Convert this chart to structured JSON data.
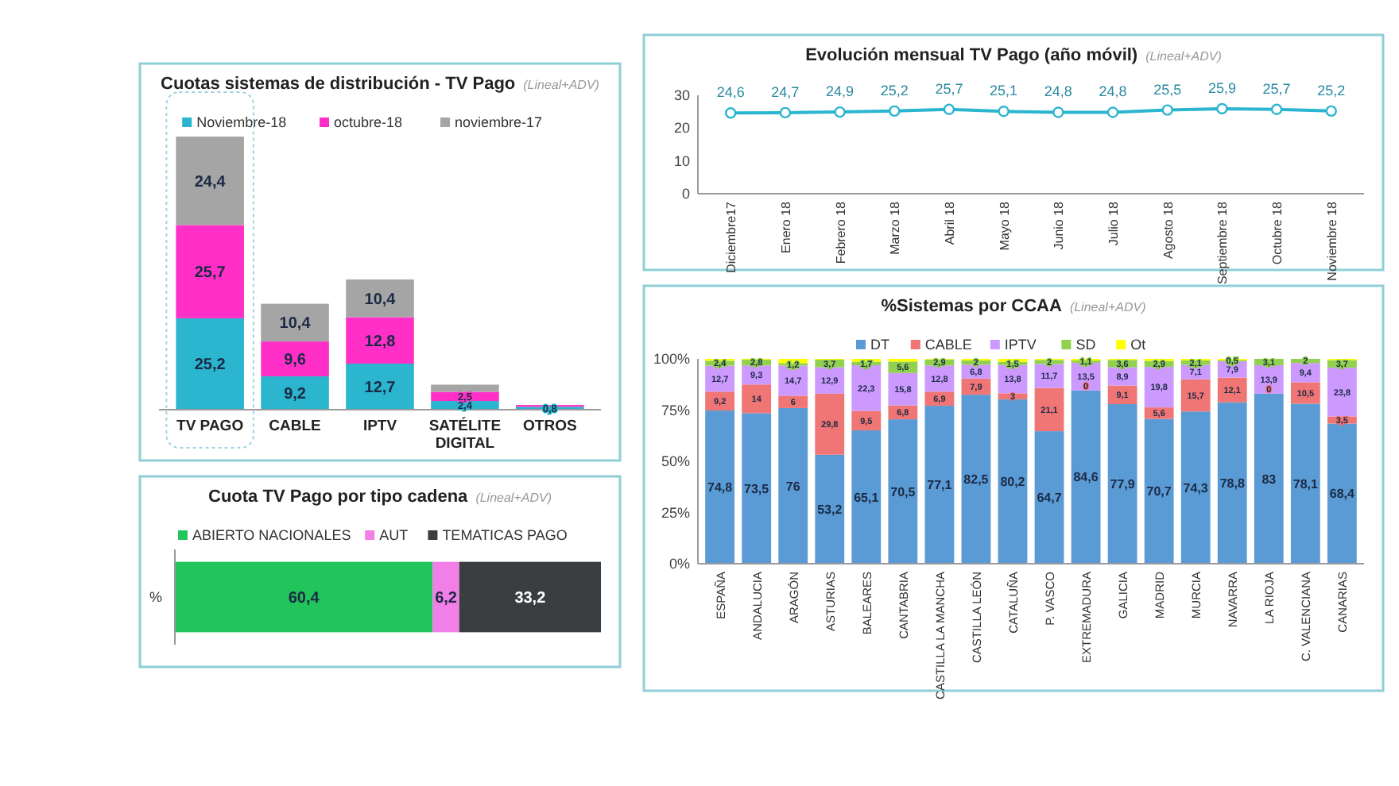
{
  "chart_data": [
    {
      "type": "bar",
      "title": "Cuotas sistemas de distribución - TV Pago",
      "subtitle": "(Lineal+ADV)",
      "stacked": true,
      "legend": "top",
      "categories": [
        "TV PAGO",
        "CABLE",
        "IPTV",
        "SATÉLITE DIGITAL",
        "OTROS"
      ],
      "series": [
        {
          "name": "Noviembre-18",
          "color": "#2bb5cf",
          "values": [
            25.2,
            9.2,
            12.7,
            2.4,
            0.8
          ],
          "value_labels": [
            "25,2",
            "9,2",
            "12,7",
            "2,4",
            "0,8"
          ]
        },
        {
          "name": "octubre-18",
          "color": "#ff2fc8",
          "values": [
            25.7,
            9.6,
            12.8,
            2.5,
            0.5
          ],
          "value_labels": [
            "25,7",
            "9,6",
            "12,8",
            "2,5",
            null
          ]
        },
        {
          "name": "noviembre-17",
          "color": "#a5a5a5",
          "values": [
            24.4,
            10.4,
            10.4,
            2,
            null
          ],
          "value_labels": [
            "24,4",
            "10,4",
            "10,4",
            null,
            null
          ]
        }
      ]
    },
    {
      "type": "line",
      "title": "Evolución mensual TV Pago (año móvil)",
      "subtitle": "(Lineal+ADV)",
      "marker": "circle",
      "categories": [
        "Diciembre17",
        "Enero 18",
        "Febrero 18",
        "Marzo 18",
        "Abril 18",
        "Mayo 18",
        "Junio 18",
        "Julio 18",
        "Agosto 18",
        "Septiembre 18",
        "Octubre 18",
        "Noviembre 18"
      ],
      "ylim": [
        0,
        30
      ],
      "yticks": [
        0,
        10,
        20,
        30
      ],
      "series": [
        {
          "color": "#2bb5cf",
          "values": [
            24.6,
            24.7,
            24.9,
            25.2,
            25.7,
            25.1,
            24.8,
            24.8,
            25.5,
            25.9,
            25.7,
            25.2
          ],
          "value_labels": [
            "24,6",
            "24,7",
            "24,9",
            "25,2",
            "25,7",
            "25,1",
            "24,8",
            "24,8",
            "25,5",
            "25,9",
            "25,7",
            "25,2"
          ]
        }
      ]
    },
    {
      "type": "bar",
      "title": "Cuota TV Pago por tipo cadena",
      "subtitle": "(Lineal+ADV)",
      "stacked": true,
      "orientation": "horizontal",
      "legend": "top",
      "categories": [
        "%"
      ],
      "series": [
        {
          "name": "ABIERTO NACIONALES",
          "color": "#22c45c",
          "values": [
            60.4
          ],
          "value_labels": [
            "60,4"
          ]
        },
        {
          "name": "AUT",
          "color": "#f27fe8",
          "values": [
            6.2
          ],
          "value_labels": [
            "6,2"
          ]
        },
        {
          "name": "TEMATICAS PAGO",
          "color": "#3a3e41",
          "values": [
            33.2
          ],
          "value_labels": [
            "33,2"
          ]
        }
      ]
    },
    {
      "type": "bar",
      "title": "%Sistemas por CCAA",
      "subtitle": "(Lineal+ADV)",
      "stacked": true,
      "legend": "top",
      "ylim": [
        0,
        100
      ],
      "yticks": [
        {
          "value": 0,
          "label": "0%"
        },
        {
          "value": 25,
          "label": "25%"
        },
        {
          "value": 50,
          "label": "50%"
        },
        {
          "value": 75,
          "label": "75%"
        },
        {
          "value": 100,
          "label": "100%"
        }
      ],
      "categories": [
        "ESPAÑA",
        "ANDALUCIA",
        "ARAGÓN",
        "ASTURIAS",
        "BALEARES",
        "CANTABRIA",
        "CASTILLA LA MANCHA",
        "CASTILLA LEÓN",
        "CATALUÑA",
        "P. VASCO",
        "EXTREMADURA",
        "GALICIA",
        "MADRID",
        "MURCIA",
        "NAVARRA",
        "LA RIOJA",
        "C. VALENCIANA",
        "CANARIAS"
      ],
      "series": [
        {
          "name": "DT",
          "color": "#5b9bd5",
          "values": [
            74.8,
            73.5,
            76,
            53.2,
            65.1,
            70.5,
            77.1,
            82.5,
            80.2,
            64.7,
            84.6,
            77.9,
            70.7,
            74.3,
            78.8,
            83,
            78.1,
            68.4
          ],
          "value_labels": [
            "74,8",
            "73,5",
            "76",
            "53,2",
            "65,1",
            "70,5",
            "77,1",
            "82,5",
            "80,2",
            "64,7",
            "84,6",
            "77,9",
            "70,7",
            "74,3",
            "78,8",
            "83",
            "78,1",
            "68,4"
          ]
        },
        {
          "name": "CABLE",
          "color": "#f07575",
          "values": [
            9.2,
            14,
            6,
            29.8,
            9.5,
            6.8,
            6.9,
            7.9,
            3,
            21.1,
            0,
            9.1,
            5.6,
            15.7,
            12.1,
            0,
            10.5,
            3.5
          ],
          "value_labels": [
            "9,2",
            "14",
            "6",
            "29,8",
            "9,5",
            "6,8",
            "6,9",
            "7,9",
            "3",
            "21,1",
            "0",
            "9,1",
            "5,6",
            "15,7",
            "12,1",
            "0",
            "10,5",
            "3,5"
          ]
        },
        {
          "name": "IPTV",
          "color": "#cc99ff",
          "values": [
            12.7,
            9.3,
            14.7,
            12.9,
            22.3,
            15.8,
            12.8,
            6.8,
            13.8,
            11.7,
            13.5,
            8.9,
            19.8,
            7.1,
            7.9,
            13.9,
            9.4,
            23.8
          ],
          "value_labels": [
            "12,7",
            "9,3",
            "14,7",
            "12,9",
            "22,3",
            "15,8",
            "12,8",
            "6,8",
            "13,8",
            "11,7",
            "13,5",
            "8,9",
            "19,8",
            "7,1",
            "7,9",
            "13,9",
            "9,4",
            "23,8"
          ]
        },
        {
          "name": "SD",
          "color": "#92d050",
          "values": [
            2.4,
            2.8,
            1.2,
            3.7,
            1.7,
            5.6,
            2.9,
            2,
            1.5,
            2,
            1.1,
            3.6,
            2.9,
            2.1,
            0.5,
            3.1,
            2,
            3.7
          ],
          "value_labels": [
            "2,4",
            "2,8",
            "1,2",
            "3,7",
            "1,7",
            "5,6",
            "2,9",
            "2",
            "1,5",
            "2",
            "1,1",
            "3,6",
            "2,9",
            "2,1",
            "0,5",
            "3,1",
            "2",
            "3,7"
          ]
        },
        {
          "name": "Ot",
          "color": "#ffff00",
          "values": [
            0.9,
            0.4,
            2.1,
            0.4,
            1.4,
            1.3,
            0.3,
            0.8,
            1.5,
            0.5,
            0.8,
            0.5,
            1,
            0.8,
            0.7,
            0,
            0,
            0.6
          ]
        }
      ]
    }
  ]
}
